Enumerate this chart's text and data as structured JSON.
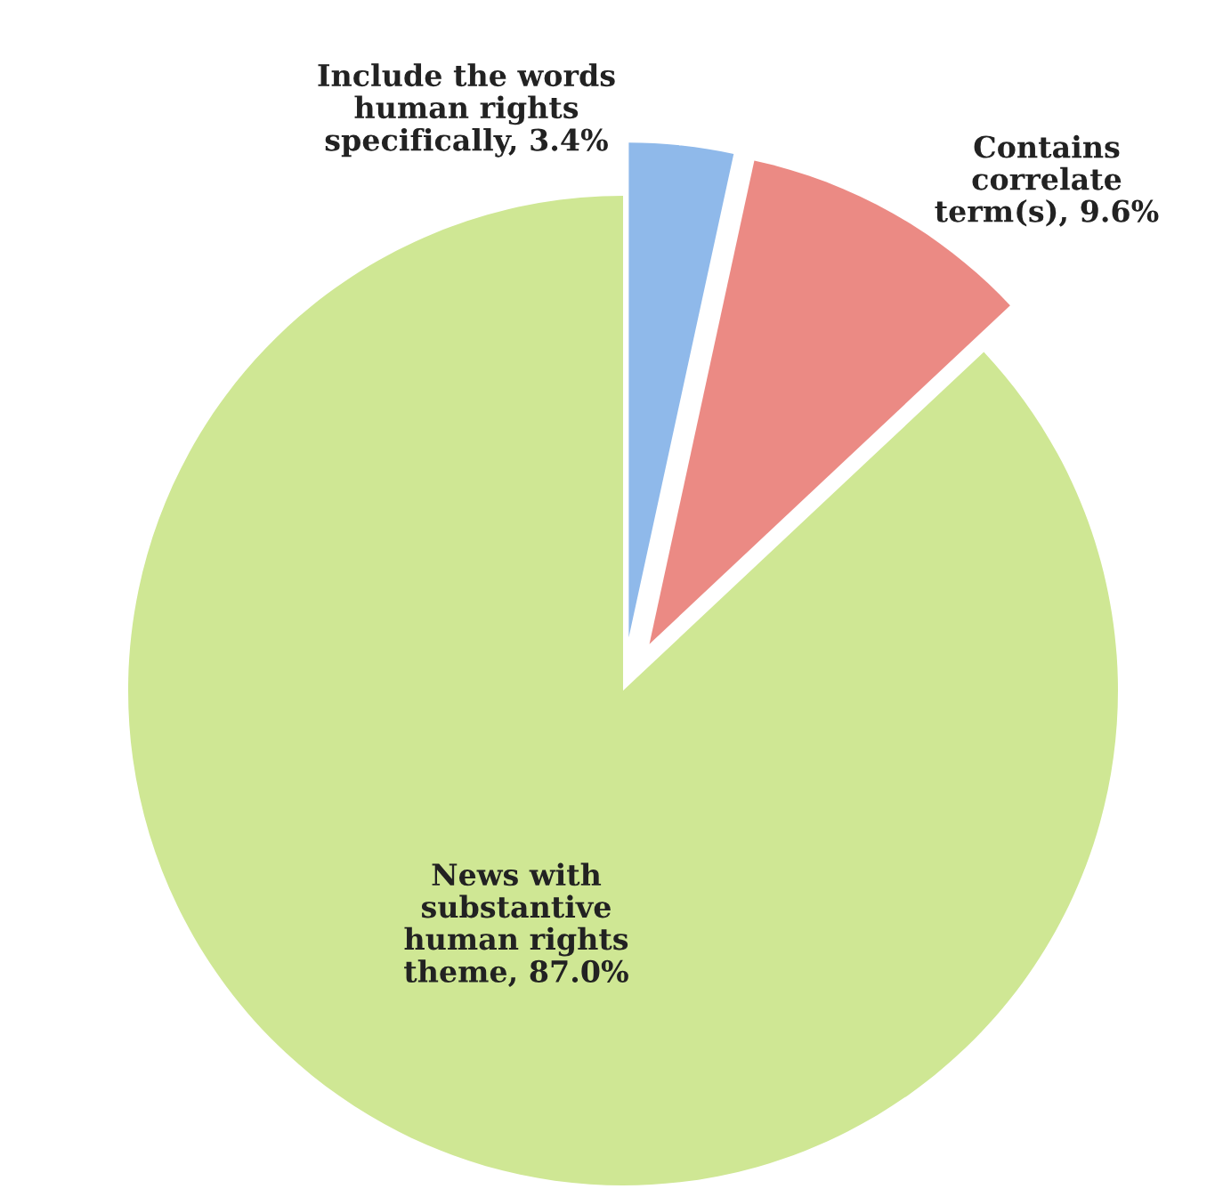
{
  "chart_data": {
    "type": "pie",
    "categories": [
      "Include the words human rights specifically, 3.4%",
      "Contains correlate term(s), 9.6%",
      "News with substantive human rights theme, 87.0%"
    ],
    "values": [
      3.4,
      9.6,
      87.0
    ],
    "colors": [
      "#8fb9ea",
      "#eb8a84",
      "#cfe794"
    ],
    "legend": false
  }
}
